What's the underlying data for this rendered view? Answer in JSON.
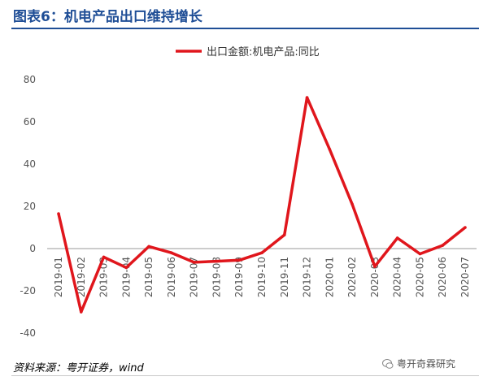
{
  "title": "图表6：机电产品出口维持增长",
  "source": "资料来源：粤开证券，wind",
  "watermark": "粤开奇霖研究",
  "colors": {
    "title": "#1f4e96",
    "series": "#e0161c",
    "axis_text": "#555555"
  },
  "chart_data": {
    "type": "line",
    "x": [
      "2019-01",
      "2019-02",
      "2019-03",
      "2019-04",
      "2019-05",
      "2019-06",
      "2019-07",
      "2019-08",
      "2019-09",
      "2019-10",
      "2019-11",
      "2019-12",
      "2020-01",
      "2020-02",
      "2020-03",
      "2020-04",
      "2020-05",
      "2020-06",
      "2020-07"
    ],
    "series": [
      {
        "name": "出口金额:机电产品:同比",
        "values": [
          16.5,
          -30,
          -4,
          -9,
          1,
          -2,
          -6.5,
          -6,
          -5.5,
          -2,
          6.5,
          71.5,
          47,
          21,
          -8.5,
          5,
          -2.5,
          1.5,
          10
        ]
      }
    ],
    "ylim": [
      -40,
      80
    ],
    "yticks": [
      "-40",
      "-20",
      "0",
      "20",
      "40",
      "60",
      "80"
    ],
    "legend": "top-center",
    "grid": false
  }
}
